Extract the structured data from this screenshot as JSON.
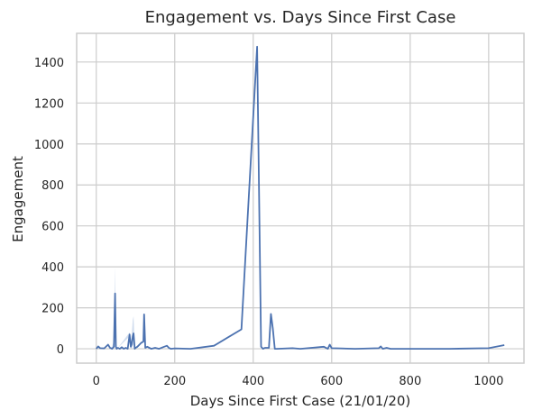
{
  "chart_data": {
    "type": "line",
    "title": "Engagement vs. Days Since First Case",
    "xlabel": "Days Since First Case (21/01/20)",
    "ylabel": "Engagement",
    "xlim": [
      -50,
      1090
    ],
    "ylim": [
      -70,
      1540
    ],
    "xticks": [
      0,
      200,
      400,
      600,
      800,
      1000
    ],
    "yticks": [
      0,
      200,
      400,
      600,
      800,
      1000,
      1200,
      1400
    ],
    "grid": true,
    "colors": {
      "line": "#4c72b0",
      "band": "#c6d4ea",
      "grid": "#cccccc",
      "text": "#262626"
    },
    "series": [
      {
        "x": [
          0,
          5,
          10,
          20,
          30,
          35,
          40,
          45,
          48,
          50,
          52,
          55,
          60,
          65,
          70,
          75,
          80,
          85,
          88,
          90,
          93,
          95,
          98,
          100,
          105,
          110,
          115,
          120,
          122,
          125,
          130,
          140,
          150,
          160,
          170,
          180,
          185,
          190,
          200,
          240,
          300,
          370,
          410,
          420,
          425,
          430,
          440,
          445,
          450,
          455,
          460,
          500,
          520,
          580,
          590,
          595,
          600,
          660,
          720,
          725,
          730,
          740,
          750,
          800,
          900,
          1000,
          1040
        ],
        "y": [
          0,
          12,
          3,
          2,
          20,
          5,
          0,
          10,
          270,
          10,
          0,
          5,
          0,
          8,
          0,
          5,
          0,
          70,
          10,
          20,
          60,
          75,
          0,
          5,
          10,
          20,
          30,
          35,
          168,
          5,
          10,
          0,
          5,
          0,
          8,
          15,
          5,
          0,
          2,
          0,
          15,
          95,
          1475,
          10,
          0,
          5,
          5,
          170,
          100,
          0,
          0,
          3,
          0,
          10,
          0,
          20,
          3,
          0,
          3,
          12,
          0,
          5,
          0,
          0,
          0,
          3,
          18
        ]
      }
    ],
    "band": {
      "x": [
        35,
        40,
        45,
        48,
        50,
        52,
        55,
        85,
        88,
        90,
        93,
        95,
        98,
        100
      ],
      "upper": [
        5,
        10,
        40,
        400,
        40,
        10,
        5,
        80,
        30,
        60,
        140,
        160,
        10,
        5
      ],
      "lower": [
        5,
        0,
        0,
        150,
        0,
        0,
        5,
        60,
        0,
        0,
        20,
        20,
        0,
        5
      ]
    }
  }
}
